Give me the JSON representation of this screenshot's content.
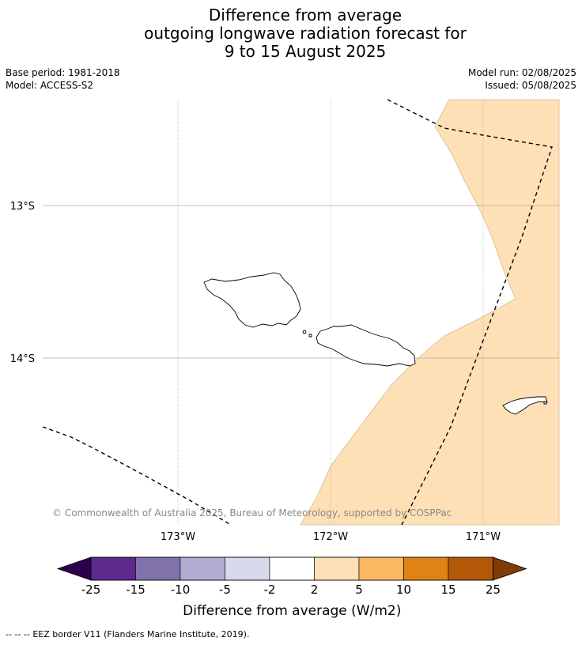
{
  "title": {
    "line1": "Difference from average",
    "line2": "outgoing longwave radiation forecast for",
    "line3": "9 to 15 August 2025"
  },
  "meta": {
    "base_period": "Base period: 1981-2018",
    "model": "Model: ACCESS-S2",
    "model_run": "Model run: 02/08/2025",
    "issued": "Issued: 05/08/2025"
  },
  "map": {
    "lat_labels": [
      "13°S",
      "14°S"
    ],
    "lon_labels": [
      "173°W",
      "172°W",
      "171°W"
    ],
    "copyright": "© Commonwealth of Australia 2025, Bureau of Meteorology, supported by COSPPac",
    "anomaly_fill_color": "#fde0b5",
    "gridline_color": "#aaaaaa"
  },
  "colorbar": {
    "title": "Difference from average (W/m2)",
    "tick_labels": [
      "-25",
      "-15",
      "-10",
      "-5",
      "-2",
      "2",
      "5",
      "10",
      "15",
      "25"
    ],
    "low_extend_color": "#2d004b",
    "high_extend_color": "#7f3b08",
    "bins": [
      {
        "from": -25,
        "to": -15,
        "color": "#5b2a8c"
      },
      {
        "from": -15,
        "to": -10,
        "color": "#8073ac"
      },
      {
        "from": -10,
        "to": -5,
        "color": "#b2abd2"
      },
      {
        "from": -5,
        "to": -2,
        "color": "#d8daeb"
      },
      {
        "from": -2,
        "to": 2,
        "color": "#ffffff"
      },
      {
        "from": 2,
        "to": 5,
        "color": "#fde0b5"
      },
      {
        "from": 5,
        "to": 10,
        "color": "#fdb863"
      },
      {
        "from": 10,
        "to": 15,
        "color": "#e08214"
      },
      {
        "from": 15,
        "to": 25,
        "color": "#b35806"
      }
    ]
  },
  "footer": {
    "legend_symbol": "-- -- --",
    "legend_text": "EEZ border V11 (Flanders Marine Institute, 2019)."
  }
}
